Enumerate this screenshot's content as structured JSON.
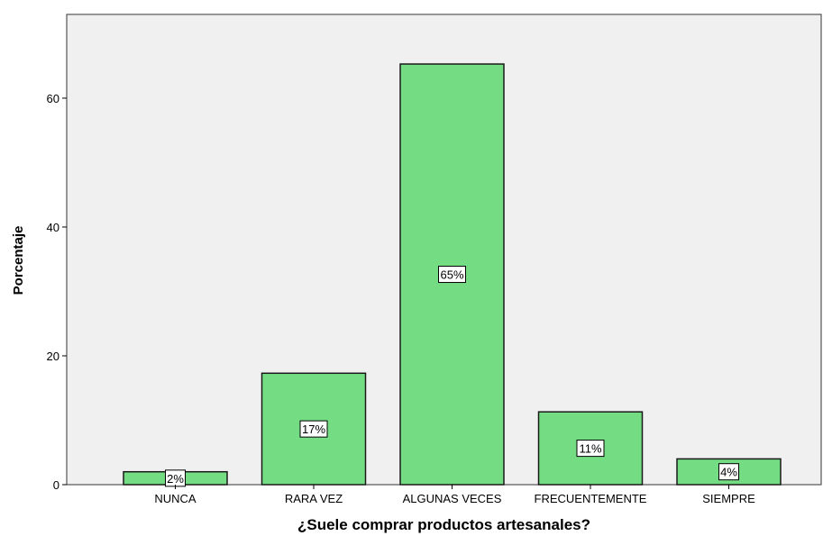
{
  "chart_data": {
    "type": "bar",
    "title": "",
    "xlabel": "¿Suele comprar productos artesanales?",
    "ylabel": "Porcentaje",
    "categories": [
      "NUNCA",
      "RARA VEZ",
      "ALGUNAS VECES",
      "FRECUENTEMENTE",
      "SIEMPRE"
    ],
    "values": [
      2.0,
      17.3,
      65.3,
      11.3,
      4.0
    ],
    "data_labels": [
      "2%",
      "17%",
      "65%",
      "11%",
      "4%"
    ],
    "yticks": [
      0,
      20,
      40,
      60
    ],
    "ylim": [
      0,
      73
    ],
    "grid": false,
    "legend": "none",
    "colors": {
      "bar_fill": "#74dd84",
      "bar_stroke": "#1a1a1a",
      "plot_background": "#f0f0f0",
      "label_box": "#ffffff"
    }
  }
}
